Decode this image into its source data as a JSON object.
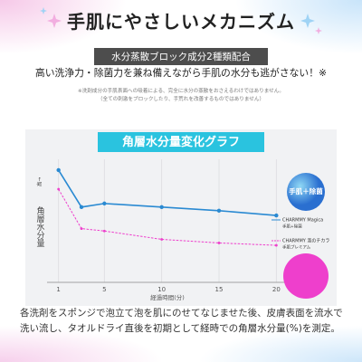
{
  "header": {
    "title": "手肌にやさしいメカニズム",
    "badge": "水分蒸散ブロック成分2種類配合",
    "lead": "高い洗浄力・除菌力を兼ね備えながら手肌の水分も逃がさない！※",
    "notes": [
      "※洗剤成分の手肌表面への吸着による、完全に水分の蒸散をおさえるわけではありません。",
      "（全ての刺激をブロックしたり、手荒れを改善するものではありません）"
    ]
  },
  "chart_data": {
    "type": "line",
    "title": "角層水分量変化グラフ",
    "ylabel": "角層水分量",
    "ylabel_arrow": "高→",
    "xlabel": "経過時間(分)",
    "badge": "手肌＋除菌",
    "x": [
      1,
      3,
      5,
      10,
      15,
      20
    ],
    "xlim": [
      0,
      21
    ],
    "xticks": [
      1,
      5,
      10,
      15,
      20
    ],
    "ylim": [
      0,
      100
    ],
    "grid": true,
    "series": [
      {
        "name": "CHARMMY Magica",
        "name_sub": "手肌+除菌",
        "color": "#2a8ad2",
        "dash": false,
        "values": [
          94,
          63,
          66,
          63,
          60,
          56
        ]
      },
      {
        "name": "CHARMMY 泡のチカラ",
        "name_sub": "手肌プレミアム",
        "color": "#ee3fcc",
        "dash": true,
        "values": [
          78,
          45,
          43,
          36,
          33,
          31
        ]
      }
    ]
  },
  "footer": {
    "text": "各洗剤をスポンジで泡立て泡を肌にのせてなじませた後、皮膚表面を流水で洗い流し、タオルドライ直後を初期として経時での角層水分量(%)を測定。"
  }
}
